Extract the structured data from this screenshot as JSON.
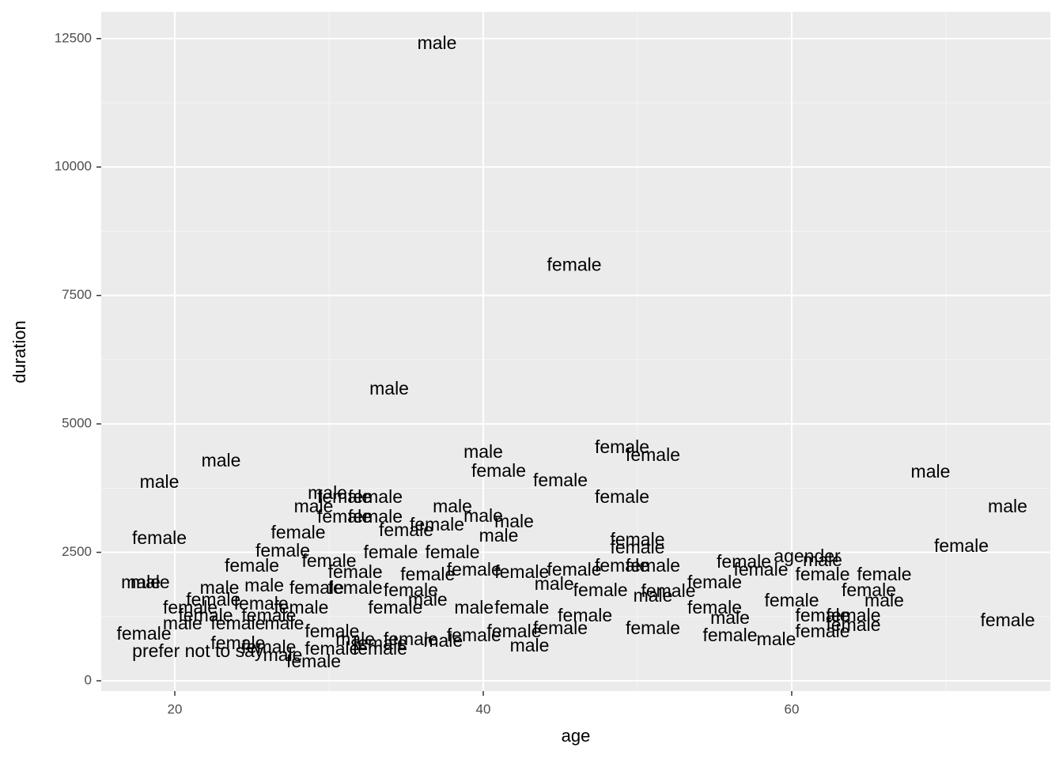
{
  "chart_data": {
    "type": "scatter",
    "x_label": "age",
    "y_label": "duration",
    "xlim": [
      15.23,
      76.77
    ],
    "ylim": [
      -200,
      13020
    ],
    "xticks": [
      20,
      40,
      60
    ],
    "yticks": [
      0,
      2500,
      5000,
      7500,
      10000,
      12500
    ],
    "x_minor_grid": [
      30,
      50,
      70
    ],
    "y_minor_grid": [
      1250,
      3750,
      6250,
      8750,
      11250
    ],
    "grid": true,
    "color": "#000000",
    "x": [
      37.0,
      45.9,
      33.9,
      23.0,
      19.0,
      19.0,
      17.8,
      18.4,
      49.0,
      51.0,
      40.0,
      41.0,
      45.0,
      49.0,
      69.0,
      74.0,
      71.0,
      74.0,
      38.0,
      40.0,
      42.0,
      41.0,
      29.9,
      31.0,
      33.0,
      29.0,
      31.0,
      33.0,
      35.0,
      37.0,
      28.0,
      27.0,
      25.0,
      30.0,
      34.0,
      38.0,
      50.0,
      50.0,
      61.0,
      62.0,
      56.9,
      58.0,
      62.0,
      66.0,
      65.0,
      66.0,
      60.0,
      55.0,
      49.0,
      51.0,
      45.9,
      52.0,
      51.0,
      55.0,
      56.0,
      59.0,
      56.0,
      62.0,
      64.0,
      62.0,
      64.0,
      51.0,
      43.0,
      45.0,
      42.0,
      29.0,
      27.0,
      21.5,
      18.0,
      21.0,
      22.0,
      20.5,
      24.1,
      26.1,
      27.1,
      30.2,
      31.7,
      33.3,
      35.3,
      37.4,
      39.4,
      22.9,
      25.8,
      29.2,
      31.7,
      35.3,
      39.4,
      42.5,
      46.6,
      22.5,
      25.6,
      28.2,
      24.1,
      26.1,
      30.2,
      33.3,
      39.4,
      42.5,
      44.6,
      36.4,
      31.7,
      36.4,
      47.6,
      34.3
    ],
    "values": [
      12390,
      8070,
      5665,
      4265,
      3850,
      2755,
      1895,
      1895,
      4525,
      4370,
      4435,
      4065,
      3880,
      3555,
      4050,
      3370,
      2600,
      1155,
      3370,
      3185,
      3080,
      2800,
      3630,
      3555,
      3555,
      3370,
      3170,
      3170,
      2910,
      3015,
      2860,
      2510,
      2215,
      2310,
      2480,
      2480,
      2725,
      2570,
      2400,
      2325,
      2295,
      2140,
      2045,
      2045,
      1740,
      1540,
      1540,
      1895,
      2215,
      2215,
      2140,
      1725,
      1630,
      1400,
      1200,
      785,
      860,
      1245,
      1245,
      940,
      1060,
      1000,
      660,
      1000,
      940,
      355,
      475,
      555,
      895,
      1400,
      1245,
      1095,
      1095,
      1245,
      1095,
      940,
      785,
      710,
      785,
      755,
      860,
      1785,
      1830,
      1785,
      1785,
      1740,
      1400,
      1400,
      1245,
      1555,
      1480,
      1400,
      710,
      630,
      600,
      600,
      2140,
      2095,
      1860,
      2045,
      2095,
      1555,
      1740,
      1400
    ],
    "labels": [
      "male",
      "female",
      "male",
      "male",
      "male",
      "female",
      "male",
      "male",
      "female",
      "female",
      "male",
      "female",
      "female",
      "female",
      "male",
      "male",
      "female",
      "female",
      "male",
      "male",
      "male",
      "male",
      "male",
      "female",
      "female",
      "male",
      "female",
      "female",
      "female",
      "female",
      "female",
      "female",
      "female",
      "female",
      "female",
      "female",
      "female",
      "female",
      "agender",
      "male",
      "female",
      "female",
      "female",
      "female",
      "female",
      "male",
      "female",
      "female",
      "female",
      "female",
      "female",
      "female",
      "male",
      "female",
      "male",
      "male",
      "female",
      "female",
      "female",
      "female",
      "female",
      "female",
      "male",
      "female",
      "female",
      "female",
      "male",
      "prefer not to say",
      "female",
      "female",
      "female",
      "male",
      "female",
      "female",
      "male",
      "female",
      "male",
      "female",
      "female",
      "male",
      "female",
      "male",
      "male",
      "female",
      "female",
      "female",
      "male",
      "female",
      "female",
      "female",
      "female",
      "female",
      "female",
      "female",
      "female",
      "female",
      "female",
      "female",
      "male",
      "female",
      "female",
      "male",
      "female",
      "female"
    ]
  }
}
